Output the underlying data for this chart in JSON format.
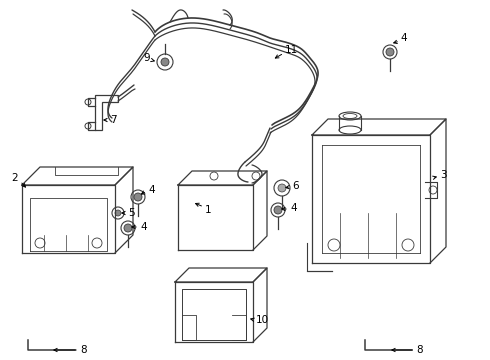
{
  "background_color": "#ffffff",
  "line_color": "#3a3a3a",
  "fig_width": 4.9,
  "fig_height": 3.6,
  "dpi": 100
}
